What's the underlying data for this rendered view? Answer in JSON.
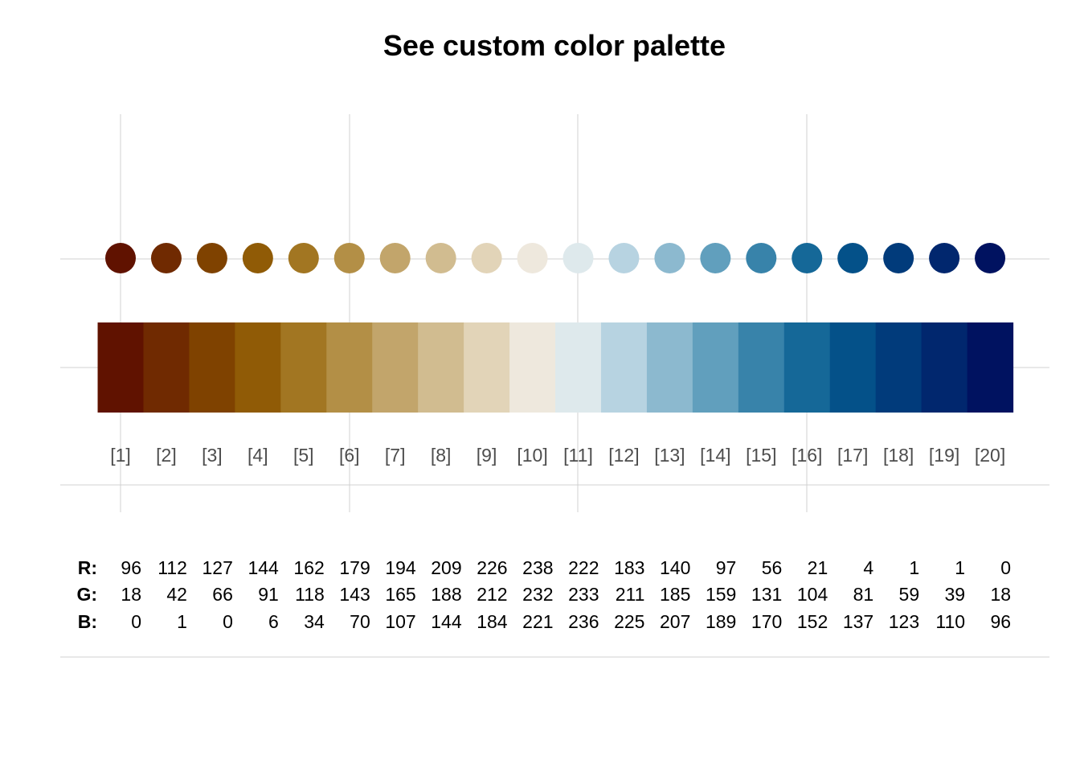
{
  "chart_data": {
    "type": "palette",
    "title": "See custom color palette",
    "index_labels": [
      "[1]",
      "[2]",
      "[3]",
      "[4]",
      "[5]",
      "[6]",
      "[7]",
      "[8]",
      "[9]",
      "[10]",
      "[11]",
      "[12]",
      "[13]",
      "[14]",
      "[15]",
      "[16]",
      "[17]",
      "[18]",
      "[19]",
      "[20]"
    ],
    "colors": [
      "#601200",
      "#702A01",
      "#7F4200",
      "#905B06",
      "#A27622",
      "#B38F46",
      "#C2A56B",
      "#D1BC90",
      "#E2D4B8",
      "#EEE8DD",
      "#DEE9EC",
      "#B7D3E1",
      "#8CB9CF",
      "#619FBD",
      "#3883AA",
      "#156898",
      "#045189",
      "#013B7B",
      "#01276E",
      "#001260"
    ],
    "rgb_labels": {
      "r": "R:",
      "g": "G:",
      "b": "B:"
    },
    "r": [
      96,
      112,
      127,
      144,
      162,
      179,
      194,
      209,
      226,
      238,
      222,
      183,
      140,
      97,
      56,
      21,
      4,
      1,
      1,
      0
    ],
    "g": [
      18,
      42,
      66,
      91,
      118,
      143,
      165,
      188,
      212,
      232,
      233,
      211,
      185,
      159,
      131,
      104,
      81,
      59,
      39,
      18
    ],
    "b": [
      0,
      1,
      0,
      6,
      34,
      70,
      107,
      144,
      184,
      221,
      236,
      225,
      207,
      189,
      170,
      152,
      137,
      123,
      110,
      96
    ],
    "grid": true,
    "legend": "none"
  }
}
